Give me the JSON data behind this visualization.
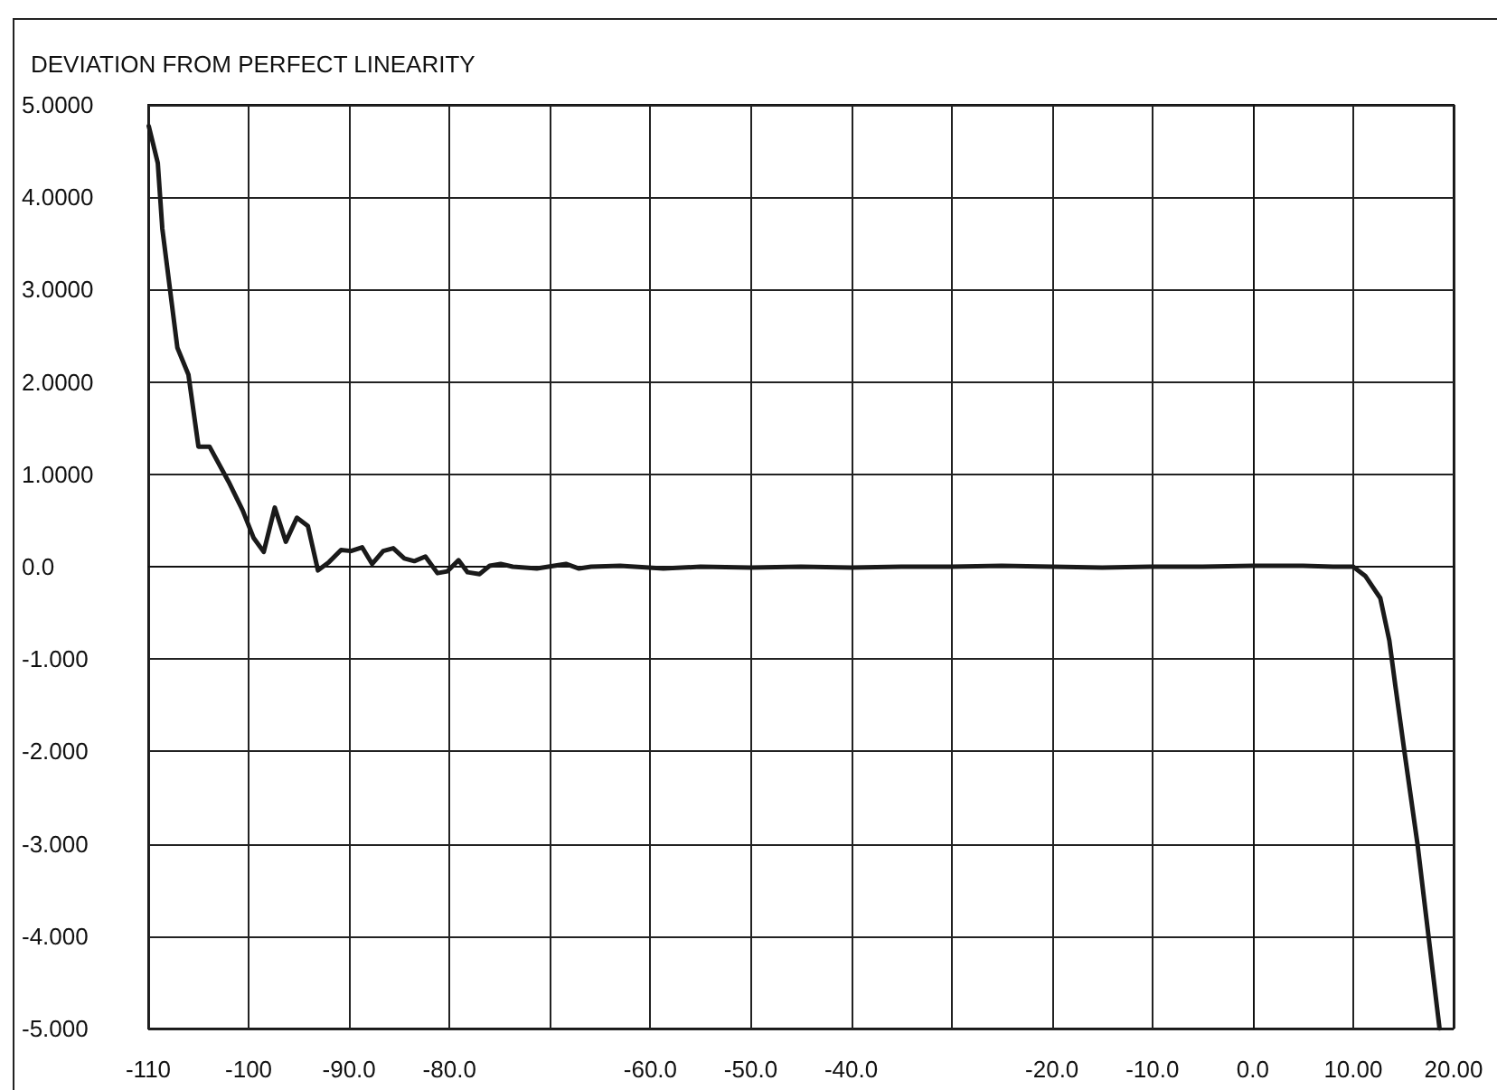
{
  "chart_data": {
    "type": "line",
    "title": "DEVIATION FROM PERFECT LINEARITY",
    "x": [
      -109.95,
      -109.05,
      -108.6,
      -107.1,
      -106,
      -105,
      -103.9,
      -102,
      -100.6,
      -99.5,
      -98.5,
      -97.4,
      -96.3,
      -95.2,
      -94.1,
      -93.1,
      -92,
      -90.8,
      -89.8,
      -88.7,
      -87.7,
      -86.6,
      -85.6,
      -84.5,
      -83.5,
      -82.4,
      -81.2,
      -80.2,
      -79.1,
      -78.2,
      -77,
      -76,
      -74.9,
      -73.7,
      -71.3,
      -69,
      -68.4,
      -67.1,
      -65.9,
      -63,
      -58.7,
      -55,
      -50,
      -45,
      -40,
      -35,
      -30,
      -25,
      -20,
      -15,
      -10,
      -5,
      0,
      5,
      8,
      10,
      11.2,
      12.7,
      13.6,
      14.2,
      15.1,
      16.4,
      17.5,
      18.6
    ],
    "series": [
      {
        "color": "#1a1a1a",
        "values": [
          4.77,
          4.37,
          3.66,
          2.37,
          2.08,
          1.3,
          1.3,
          0.92,
          0.61,
          0.31,
          0.16,
          0.64,
          0.27,
          0.53,
          0.44,
          -0.04,
          0.05,
          0.18,
          0.17,
          0.21,
          0.03,
          0.17,
          0.2,
          0.09,
          0.06,
          0.11,
          -0.07,
          -0.05,
          0.07,
          -0.06,
          -0.08,
          0.01,
          0.03,
          0,
          -0.02,
          0.02,
          0.03,
          -0.02,
          0,
          0.01,
          -0.02,
          0,
          -0.01,
          0,
          -0.01,
          0,
          0,
          0.01,
          0,
          -0.01,
          0,
          0,
          0.01,
          0.01,
          0,
          0,
          -0.1,
          -0.34,
          -0.8,
          -1.29,
          -2,
          -3,
          -4,
          -5
        ]
      }
    ],
    "xlim": [
      -110,
      20
    ],
    "ylim": [
      -5,
      5
    ],
    "xticks": [
      -110,
      -100,
      {
        "value": -90,
        "label": "-90.0"
      },
      {
        "value": -80,
        "label": "-80.0"
      },
      {
        "value": -70,
        "label": null
      },
      {
        "value": -60,
        "label": "-60.0"
      },
      {
        "value": -50,
        "label": "-50.0"
      },
      {
        "value": -40,
        "label": "-40.0"
      },
      {
        "value": -30,
        "label": null
      },
      {
        "value": -20,
        "label": "-20.0"
      },
      {
        "value": -10,
        "label": "-10.0"
      },
      {
        "value": 0,
        "label": "0.0"
      },
      {
        "value": 10,
        "label": "10.00"
      },
      {
        "value": 20,
        "label": "20.00"
      }
    ],
    "yticks": [
      {
        "value": 5,
        "label": "5.0000"
      },
      {
        "value": 4,
        "label": "4.0000"
      },
      {
        "value": 3,
        "label": "3.0000"
      },
      {
        "value": 2,
        "label": "2.0000"
      },
      {
        "value": 1,
        "label": "1.0000"
      },
      {
        "value": 0,
        "label": "0.0"
      },
      {
        "value": -1,
        "label": "-1.000"
      },
      {
        "value": -2,
        "label": "-2.000"
      },
      {
        "value": -3,
        "label": "-3.000"
      },
      {
        "value": -4,
        "label": "-4.000"
      },
      {
        "value": -5,
        "label": "-5.000"
      }
    ],
    "grid": true,
    "marker": "none",
    "line_style": "solid"
  }
}
